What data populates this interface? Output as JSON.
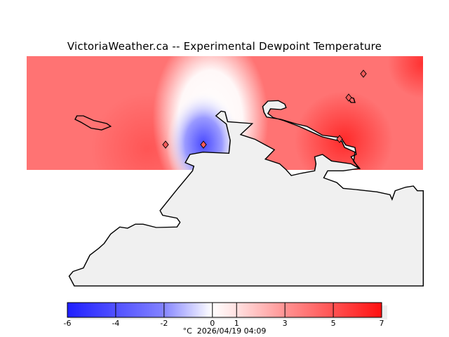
{
  "title": "VictoriaWeather.ca -- Experimental Dewpoint Temperature",
  "colorbar": {
    "min": -6,
    "max": 7,
    "tick_labels": [
      "-6",
      "-4",
      "-2",
      "0",
      "1",
      "3",
      "5",
      "7"
    ],
    "tick_values": [
      -6,
      -4,
      -2,
      0,
      1,
      3,
      5,
      7
    ],
    "units": "°C",
    "timestamp": "2026/04/19 04:09",
    "colors": {
      "cold": "#1f1fff",
      "neutral": "#ffffff",
      "warm": "#ff1010"
    }
  },
  "map": {
    "land_color": "#f0f0f0",
    "station_count": 5
  }
}
